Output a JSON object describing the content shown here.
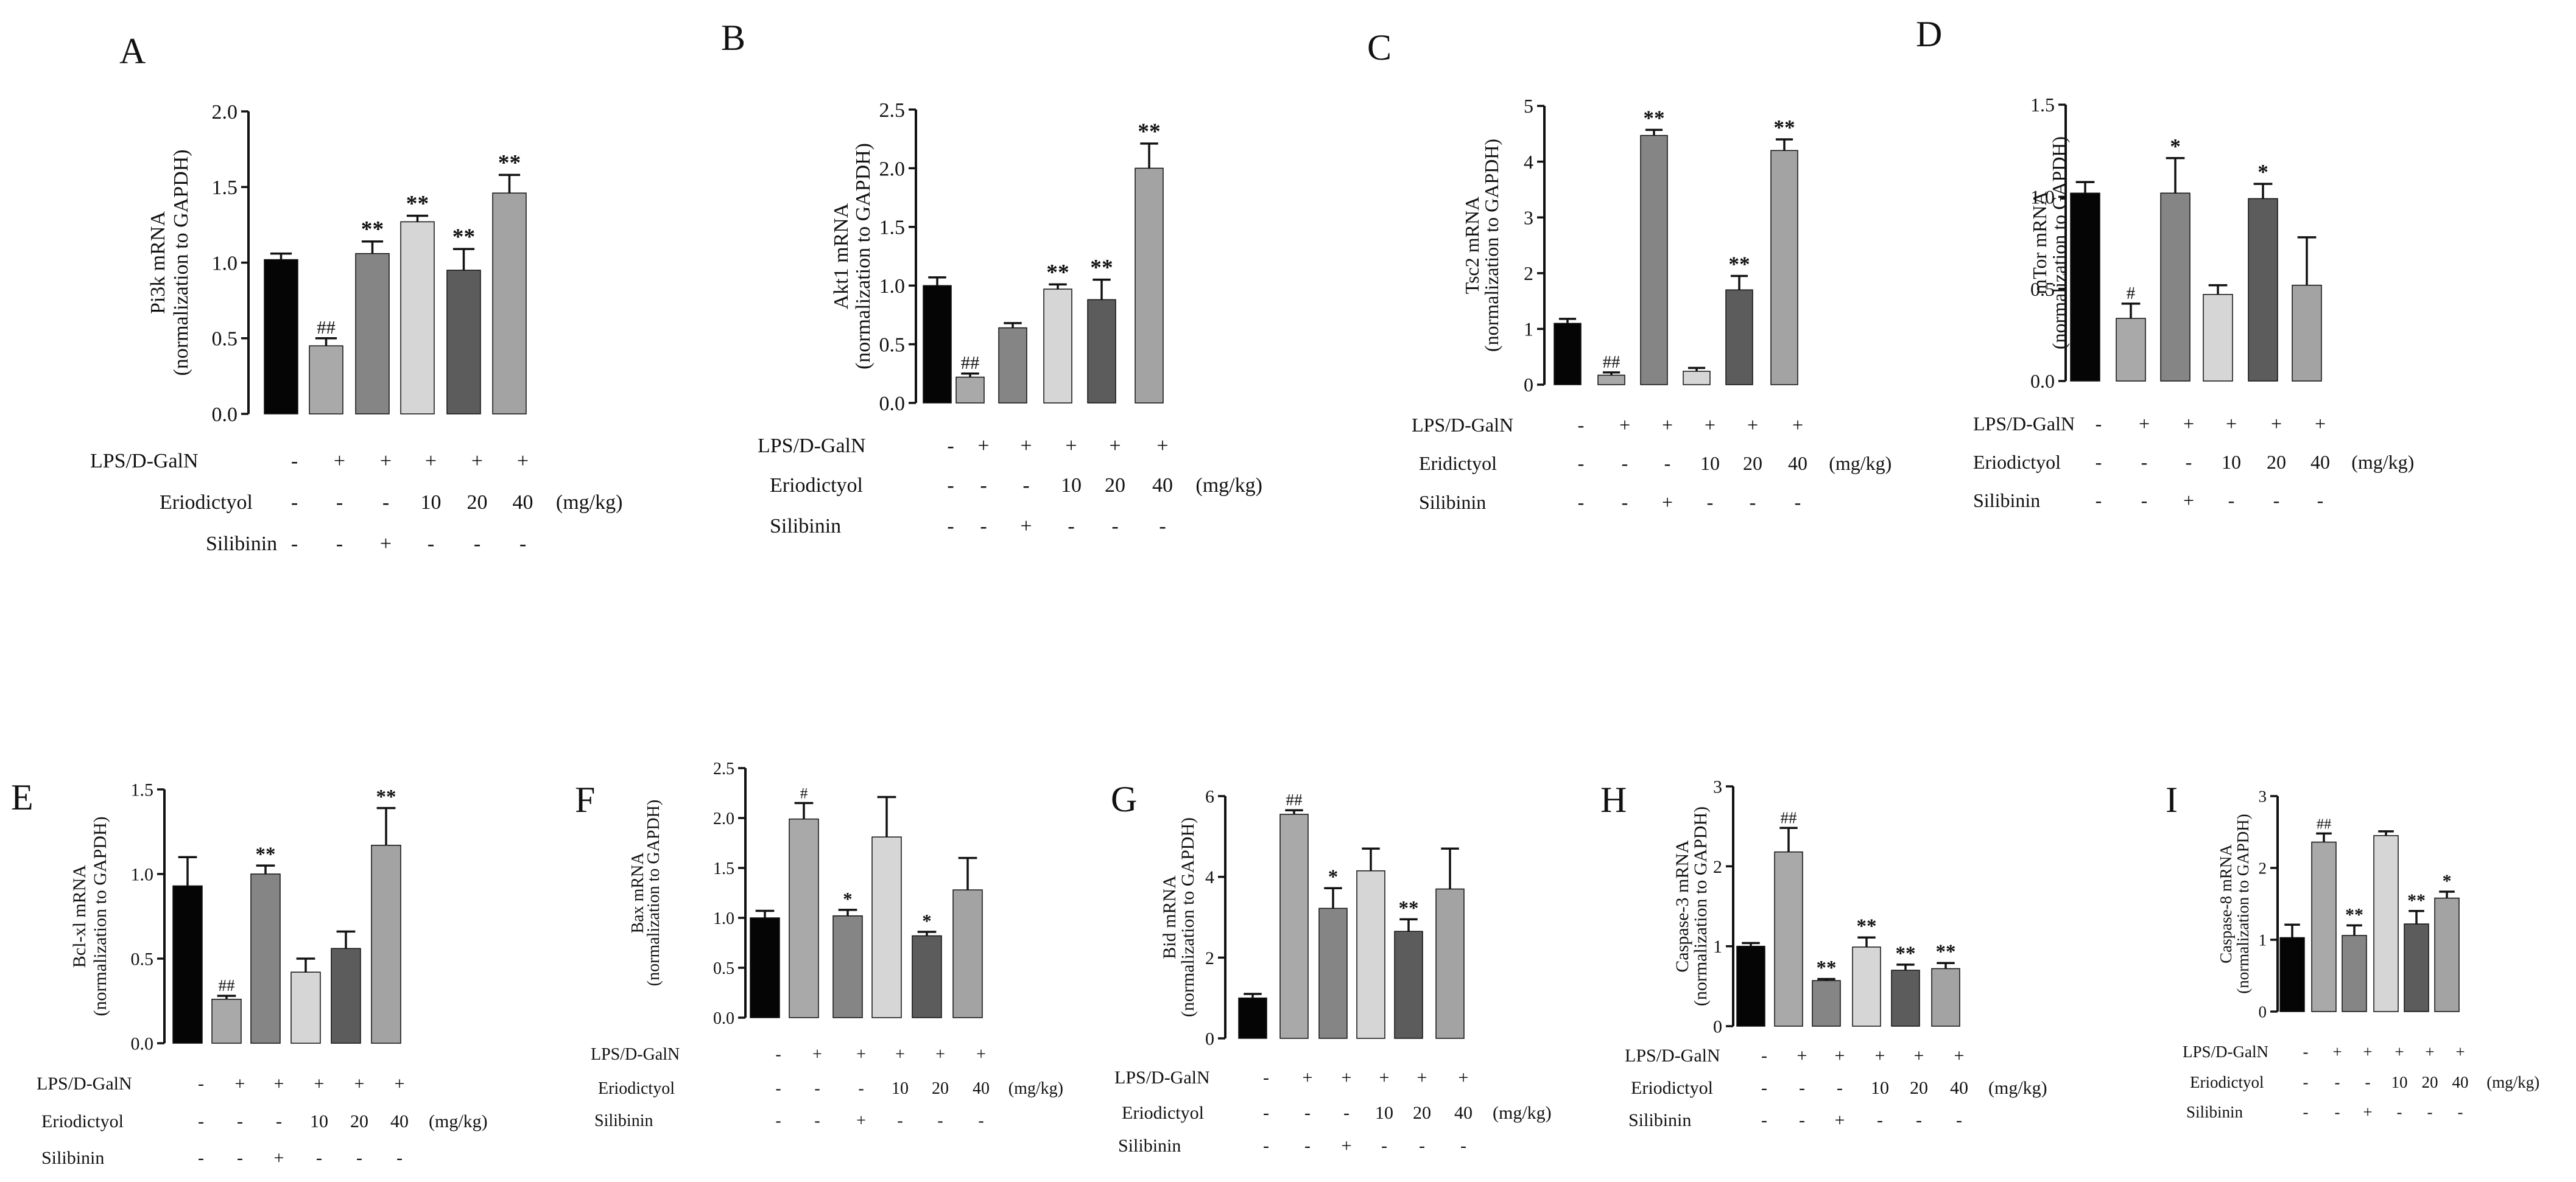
{
  "figure": {
    "row_labels": [
      "LPS/D-GalN",
      "Eriodictyol",
      "Silibinin"
    ],
    "units_label": "(mg/kg)",
    "colors": {
      "axis": "#111111",
      "bars": [
        "#050505",
        "#a9a9a9",
        "#858585",
        "#d6d6d6",
        "#5c5c5c",
        "#a3a3a3"
      ]
    }
  },
  "chart_data": [
    {
      "panel": "A",
      "type": "bar",
      "ylabel": [
        "Pi3k mRNA",
        "(normalization to GAPDH)"
      ],
      "ylim": [
        0,
        2.0
      ],
      "yticks": [
        0,
        0.5,
        1.0,
        1.5,
        2.0
      ],
      "tick_labels": [
        "0.0",
        "0.5",
        "1.0",
        "1.5",
        "2.0"
      ],
      "values": [
        1.02,
        0.45,
        1.06,
        1.27,
        0.95,
        1.46
      ],
      "errors": [
        0.04,
        0.05,
        0.08,
        0.04,
        0.14,
        0.12
      ],
      "annotations": [
        "",
        "##",
        "**",
        "**",
        "**",
        "**"
      ],
      "rows": [
        {
          "label": "LPS/D-GalN",
          "values": [
            "-",
            "+",
            "+",
            "+",
            "+",
            "+"
          ]
        },
        {
          "label": "Eriodictyol",
          "values": [
            "-",
            "-",
            "-",
            "10",
            "20",
            "40"
          ],
          "suffix": "(mg/kg)"
        },
        {
          "label": "Silibinin",
          "values": [
            "-",
            "-",
            "+",
            "-",
            "-",
            "-"
          ]
        }
      ]
    },
    {
      "panel": "B",
      "type": "bar",
      "ylabel": [
        "Akt1 mRNA",
        "(normalization to GAPDH)"
      ],
      "ylim": [
        0,
        2.5
      ],
      "yticks": [
        0,
        0.5,
        1.0,
        1.5,
        2.0,
        2.5
      ],
      "tick_labels": [
        "0.0",
        "0.5",
        "1.0",
        "1.5",
        "2.0",
        "2.5"
      ],
      "values": [
        1.0,
        0.22,
        0.64,
        0.97,
        0.88,
        2.0
      ],
      "errors": [
        0.07,
        0.03,
        0.04,
        0.04,
        0.17,
        0.21
      ],
      "annotations": [
        "",
        "##",
        "",
        "**",
        "**",
        "**"
      ],
      "rows": [
        {
          "label": "LPS/D-GalN",
          "values": [
            "-",
            "+",
            "+",
            "+",
            "+",
            "+"
          ]
        },
        {
          "label": "Eriodictyol",
          "values": [
            "-",
            "-",
            "-",
            "10",
            "20",
            "40"
          ],
          "suffix": "(mg/kg)"
        },
        {
          "label": "Silibinin",
          "values": [
            "-",
            "-",
            "+",
            "-",
            "-",
            "-"
          ]
        }
      ]
    },
    {
      "panel": "C",
      "type": "bar",
      "ylabel": [
        "Tsc2 mRNA",
        "(normalization to GAPDH)"
      ],
      "ylim": [
        0,
        5
      ],
      "yticks": [
        0,
        1,
        2,
        3,
        4,
        5
      ],
      "tick_labels": [
        "0",
        "1",
        "2",
        "3",
        "4",
        "5"
      ],
      "values": [
        1.1,
        0.17,
        4.47,
        0.24,
        1.7,
        4.2
      ],
      "errors": [
        0.08,
        0.05,
        0.1,
        0.06,
        0.25,
        0.2
      ],
      "annotations": [
        "",
        "##",
        "**",
        "",
        "**",
        "**"
      ],
      "rows": [
        {
          "label": "LPS/D-GalN",
          "values": [
            "-",
            "+",
            "+",
            "+",
            "+",
            "+"
          ]
        },
        {
          "label": "Eridictyol",
          "values": [
            "-",
            "-",
            "-",
            "10",
            "20",
            "40"
          ],
          "suffix": "(mg/kg)"
        },
        {
          "label": "Silibinin",
          "values": [
            "-",
            "-",
            "+",
            "-",
            "-",
            "-"
          ]
        }
      ]
    },
    {
      "panel": "D",
      "type": "bar",
      "ylabel": [
        "mTor mRNA",
        "(normalization to GAPDH)"
      ],
      "ylim": [
        0,
        1.5
      ],
      "yticks": [
        0,
        0.5,
        1.0,
        1.5
      ],
      "tick_labels": [
        "0.0",
        "0.5",
        "1.0",
        "1.5"
      ],
      "values": [
        1.02,
        0.34,
        1.02,
        0.47,
        0.99,
        0.52
      ],
      "errors": [
        0.06,
        0.08,
        0.19,
        0.05,
        0.08,
        0.26
      ],
      "annotations": [
        "",
        "#",
        "*",
        "",
        "*",
        ""
      ],
      "rows": [
        {
          "label": "LPS/D-GalN",
          "values": [
            "-",
            "+",
            "+",
            "+",
            "+",
            "+"
          ]
        },
        {
          "label": "Eriodictyol",
          "values": [
            "-",
            "-",
            "-",
            "10",
            "20",
            "40"
          ],
          "suffix": "(mg/kg)"
        },
        {
          "label": "Silibinin",
          "values": [
            "-",
            "-",
            "+",
            "-",
            "-",
            "-"
          ]
        }
      ]
    },
    {
      "panel": "E",
      "type": "bar",
      "ylabel": [
        "Bcl-xl mRNA",
        "(normalization to GAPDH)"
      ],
      "ylim": [
        0,
        1.5
      ],
      "yticks": [
        0,
        0.5,
        1.0,
        1.5
      ],
      "tick_labels": [
        "0.0",
        "0.5",
        "1.0",
        "1.5"
      ],
      "values": [
        0.93,
        0.26,
        1.0,
        0.42,
        0.56,
        1.17
      ],
      "errors": [
        0.17,
        0.02,
        0.05,
        0.08,
        0.1,
        0.22
      ],
      "annotations": [
        "",
        "##",
        "**",
        "",
        "",
        "**"
      ],
      "rows": [
        {
          "label": "LPS/D-GalN",
          "values": [
            "-",
            "+",
            "+",
            "+",
            "+",
            "+"
          ]
        },
        {
          "label": "Eriodictyol",
          "values": [
            "-",
            "-",
            "-",
            "10",
            "20",
            "40"
          ],
          "suffix": "(mg/kg)"
        },
        {
          "label": "Silibinin",
          "values": [
            "-",
            "-",
            "+",
            "-",
            "-",
            "-"
          ]
        }
      ]
    },
    {
      "panel": "F",
      "type": "bar",
      "ylabel": [
        "Bax mRNA",
        "(normalization to GAPDH)"
      ],
      "ylim": [
        0,
        2.5
      ],
      "yticks": [
        0,
        0.5,
        1.0,
        1.5,
        2.0,
        2.5
      ],
      "tick_labels": [
        "0.0",
        "0.5",
        "1.0",
        "1.5",
        "2.0",
        "2.5"
      ],
      "values": [
        1.0,
        1.99,
        1.02,
        1.81,
        0.82,
        1.28
      ],
      "errors": [
        0.07,
        0.16,
        0.06,
        0.4,
        0.04,
        0.32
      ],
      "annotations": [
        "",
        "#",
        "*",
        "",
        "*",
        ""
      ],
      "rows": [
        {
          "label": "LPS/D-GalN",
          "values": [
            "-",
            "+",
            "+",
            "+",
            "+",
            "+"
          ]
        },
        {
          "label": "Eriodictyol",
          "values": [
            "-",
            "-",
            "-",
            "10",
            "20",
            "40"
          ],
          "suffix": "(mg/kg)"
        },
        {
          "label": "Silibinin",
          "values": [
            "-",
            "-",
            "+",
            "-",
            "-",
            "-"
          ]
        }
      ]
    },
    {
      "panel": "G",
      "type": "bar",
      "ylabel": [
        "Bid mRNA",
        "(normalization to GAPDH)"
      ],
      "ylim": [
        0,
        6
      ],
      "yticks": [
        0,
        2,
        4,
        6
      ],
      "tick_labels": [
        "0",
        "2",
        "4",
        "6"
      ],
      "values": [
        1.0,
        5.55,
        3.22,
        4.15,
        2.65,
        3.7
      ],
      "errors": [
        0.1,
        0.1,
        0.5,
        0.55,
        0.3,
        1.0
      ],
      "annotations": [
        "",
        "##",
        "*",
        "",
        "**",
        ""
      ],
      "rows": [
        {
          "label": "LPS/D-GalN",
          "values": [
            "-",
            "+",
            "+",
            "+",
            "+",
            "+"
          ]
        },
        {
          "label": "Eriodictyol",
          "values": [
            "-",
            "-",
            "-",
            "10",
            "20",
            "40"
          ],
          "suffix": "(mg/kg)"
        },
        {
          "label": "Silibinin",
          "values": [
            "-",
            "-",
            "+",
            "-",
            "-",
            "-"
          ]
        }
      ]
    },
    {
      "panel": "H",
      "type": "bar",
      "ylabel": [
        "Caspase-3 mRNA",
        "(normalization to GAPDH)"
      ],
      "ylim": [
        0,
        3
      ],
      "yticks": [
        0,
        1,
        2,
        3
      ],
      "tick_labels": [
        "0",
        "1",
        "2",
        "3"
      ],
      "values": [
        1.0,
        2.18,
        0.57,
        0.99,
        0.7,
        0.72
      ],
      "errors": [
        0.04,
        0.3,
        0.02,
        0.12,
        0.07,
        0.07
      ],
      "annotations": [
        "",
        "##",
        "**",
        "**",
        "**",
        "**"
      ],
      "rows": [
        {
          "label": "LPS/D-GalN",
          "values": [
            "-",
            "+",
            "+",
            "+",
            "+",
            "+"
          ]
        },
        {
          "label": "Eriodictyol",
          "values": [
            "-",
            "-",
            "-",
            "10",
            "20",
            "40"
          ],
          "suffix": "(mg/kg)"
        },
        {
          "label": "Silibinin",
          "values": [
            "-",
            "-",
            "+",
            "-",
            "-",
            "-"
          ]
        }
      ]
    },
    {
      "panel": "I",
      "type": "bar",
      "ylabel": [
        "Caspase-8 mRNA",
        "(normalization to GAPDH)"
      ],
      "ylim": [
        0,
        3
      ],
      "yticks": [
        0,
        1,
        2,
        3
      ],
      "tick_labels": [
        "0",
        "1",
        "2",
        "3"
      ],
      "values": [
        1.03,
        2.36,
        1.06,
        2.45,
        1.22,
        1.58
      ],
      "errors": [
        0.18,
        0.12,
        0.14,
        0.06,
        0.18,
        0.09
      ],
      "annotations": [
        "",
        "##",
        "**",
        "",
        "**",
        "*"
      ],
      "rows": [
        {
          "label": "LPS/D-GalN",
          "values": [
            "-",
            "+",
            "+",
            "+",
            "+",
            "+"
          ]
        },
        {
          "label": "Eriodictyol",
          "values": [
            "-",
            "-",
            "-",
            "10",
            "20",
            "40"
          ],
          "suffix": "(mg/kg)"
        },
        {
          "label": "Silibinin",
          "values": [
            "-",
            "-",
            "+",
            "-",
            "-",
            "-"
          ]
        }
      ]
    }
  ]
}
